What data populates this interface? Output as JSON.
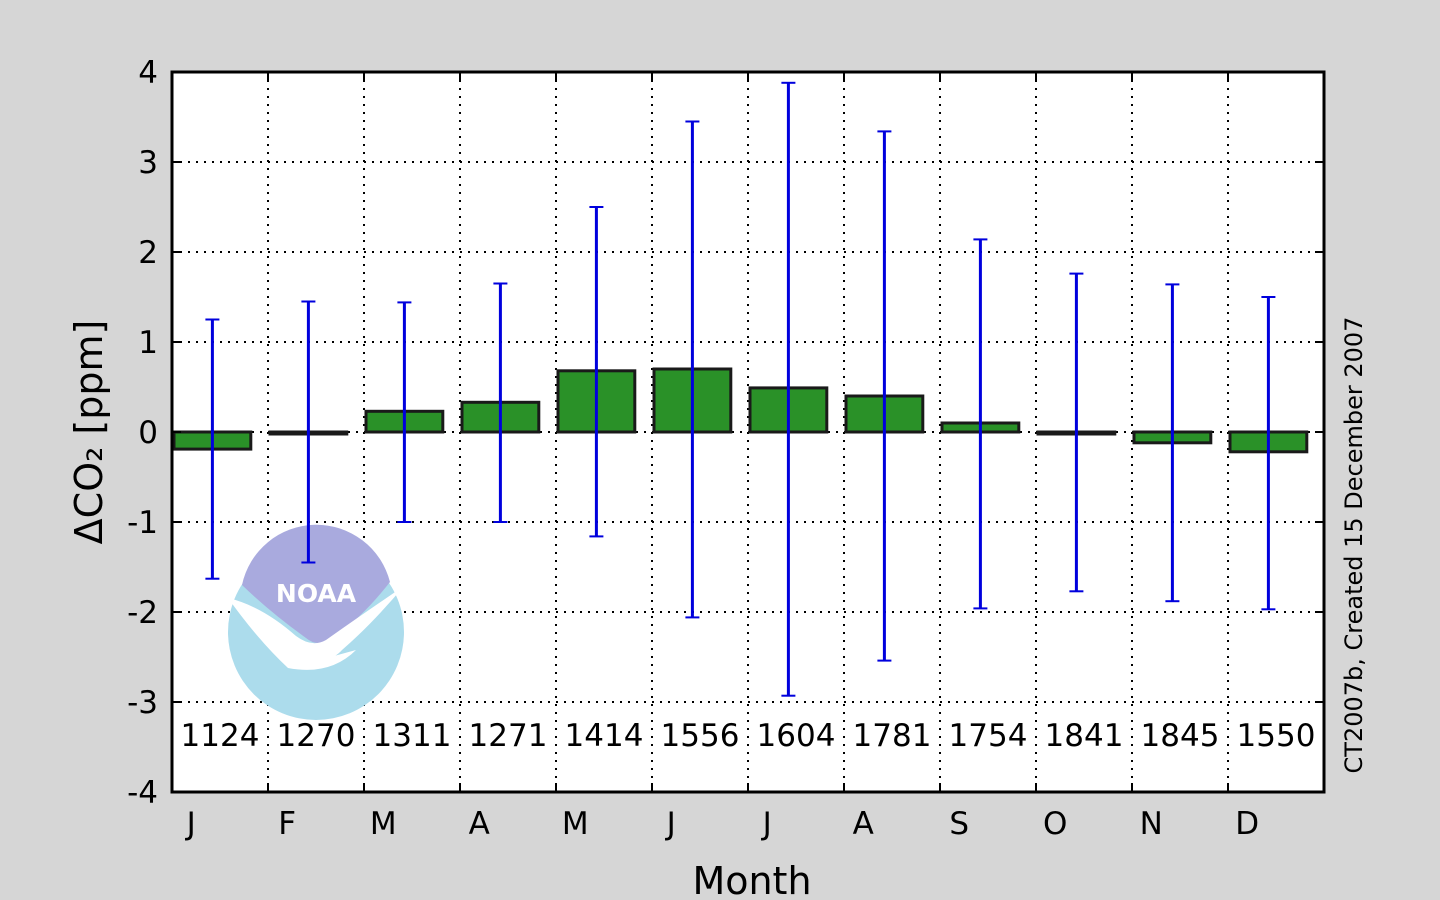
{
  "chart_data": {
    "type": "bar",
    "categories": [
      "J",
      "F",
      "M",
      "A",
      "M",
      "J",
      "J",
      "A",
      "S",
      "O",
      "N",
      "D"
    ],
    "values": [
      -0.19,
      0.0,
      0.23,
      0.33,
      0.68,
      0.7,
      0.49,
      0.4,
      0.1,
      0.0,
      -0.12,
      -0.22
    ],
    "error_low": [
      -1.63,
      -1.45,
      -1.0,
      -1.0,
      -1.16,
      -2.06,
      -2.93,
      -2.54,
      -1.96,
      -1.77,
      -1.88,
      -1.97
    ],
    "error_high": [
      1.25,
      1.45,
      1.44,
      1.65,
      2.5,
      3.45,
      3.88,
      3.34,
      2.14,
      1.76,
      1.64,
      1.5
    ],
    "counts": [
      "1124",
      "1270",
      "1311",
      "1271",
      "1414",
      "1556",
      "1604",
      "1781",
      "1754",
      "1841",
      "1845",
      "1550"
    ],
    "xlabel": "Month",
    "ylabel": "ΔCO₂ [ppm]",
    "ylim": [
      -4,
      4
    ],
    "yticks": [
      "4",
      "3",
      "2",
      "1",
      "0",
      "-1",
      "-2",
      "-3",
      "-4"
    ],
    "ytick_values": [
      4,
      3,
      2,
      1,
      0,
      -1,
      -2,
      -3,
      -4
    ],
    "grid": true,
    "side_note": "CT2007b, Created 15 December 2007",
    "logo_text": "NOAA",
    "colors": {
      "bar_fill": "#2a9128",
      "bar_edge": "#1a1a1a",
      "error_bar": "#0000dd",
      "background": "#d6d6d6",
      "plot_background": "#ffffff",
      "logo_top": "#a9aade",
      "logo_bottom": "#acdcec"
    }
  }
}
